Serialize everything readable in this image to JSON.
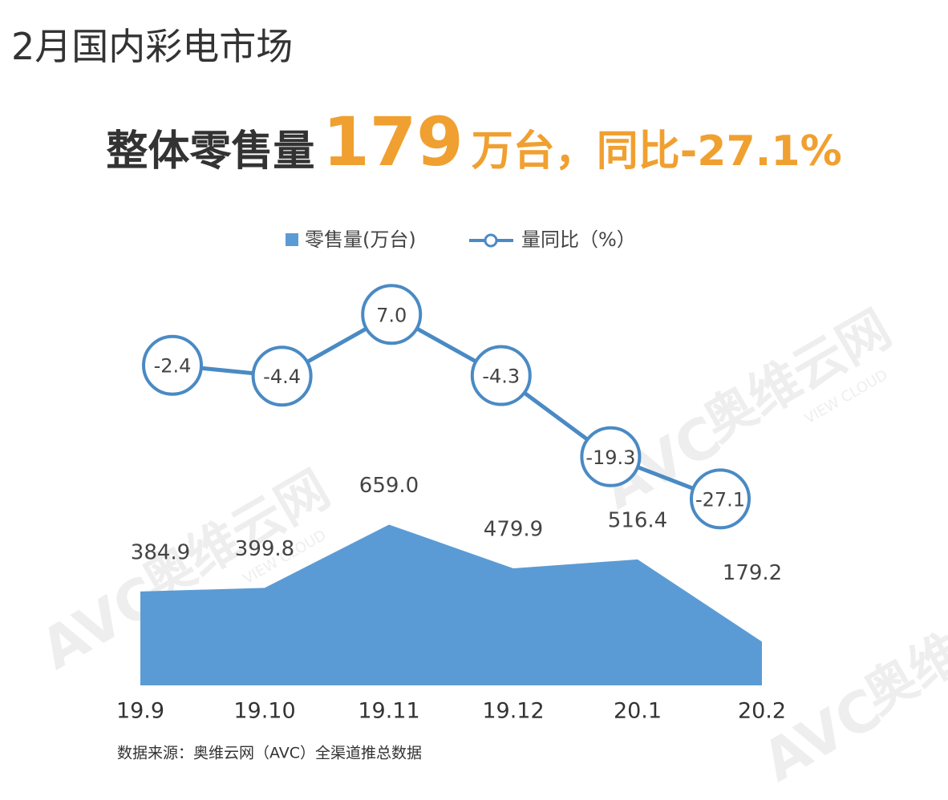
{
  "chart_data": {
    "type": "area-line",
    "title": "2月国内彩电市场",
    "headline": [
      "整体零售量",
      "179",
      "万台，同比-27.1%"
    ],
    "categories": [
      "19.9",
      "19.10",
      "19.11",
      "19.12",
      "20.1",
      "20.2"
    ],
    "series": [
      {
        "name": "零售量(万台)",
        "type": "area",
        "color": "#5b9bd5",
        "values": [
          384.9,
          399.8,
          659.0,
          479.9,
          516.4,
          179.2
        ],
        "value_labels": [
          "384.9",
          "399.8",
          "659.0",
          "479.9",
          "516.4",
          "179.2"
        ]
      },
      {
        "name": "量同比（%）",
        "type": "line",
        "axis": "y2",
        "color": "#4a8ac4",
        "values": [
          -2.4,
          -4.4,
          7.0,
          -4.3,
          -19.3,
          -27.1
        ],
        "value_labels": [
          "-2.4",
          "-4.4",
          "7.0",
          "-4.3",
          "-19.3",
          "-27.1"
        ]
      }
    ],
    "ylim": [
      0,
      700
    ],
    "y2lim": [
      -30,
      10
    ],
    "source": "数据来源：奥维云网（AVC）全渠道推总数据",
    "watermark": "奥维云网",
    "watermark_logo": "AVC",
    "watermark_sub": "VIEW CLOUD"
  }
}
